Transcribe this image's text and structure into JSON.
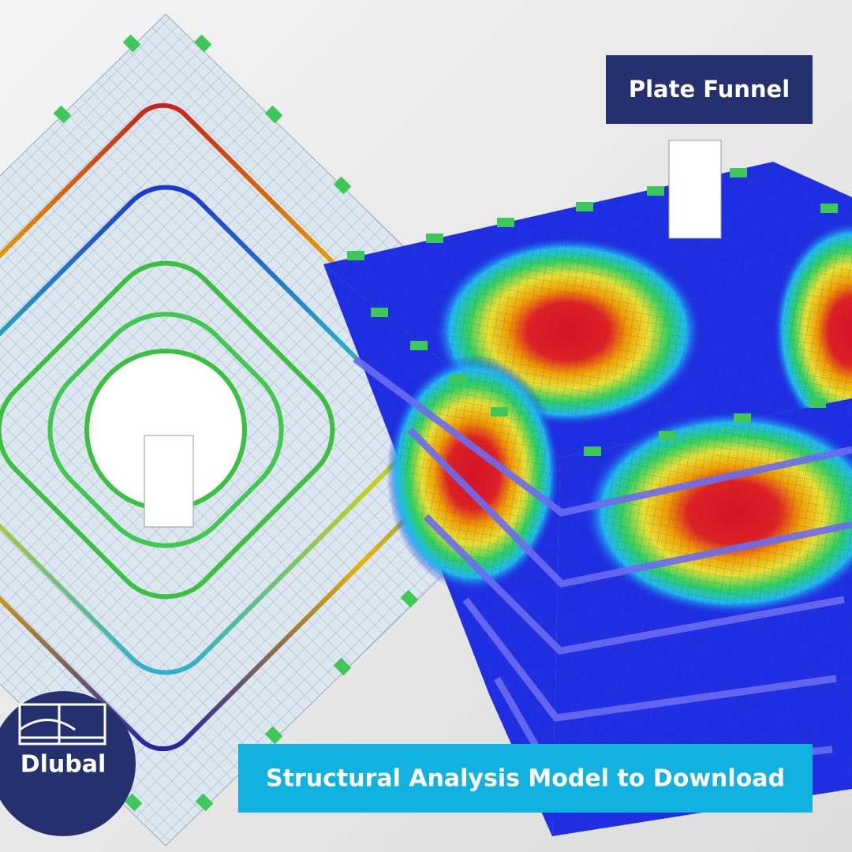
{
  "header": {
    "title": "Plate Funnel"
  },
  "banner": {
    "text": "Structural Analysis Model to Download"
  },
  "logo": {
    "text": "Dlubal"
  }
}
